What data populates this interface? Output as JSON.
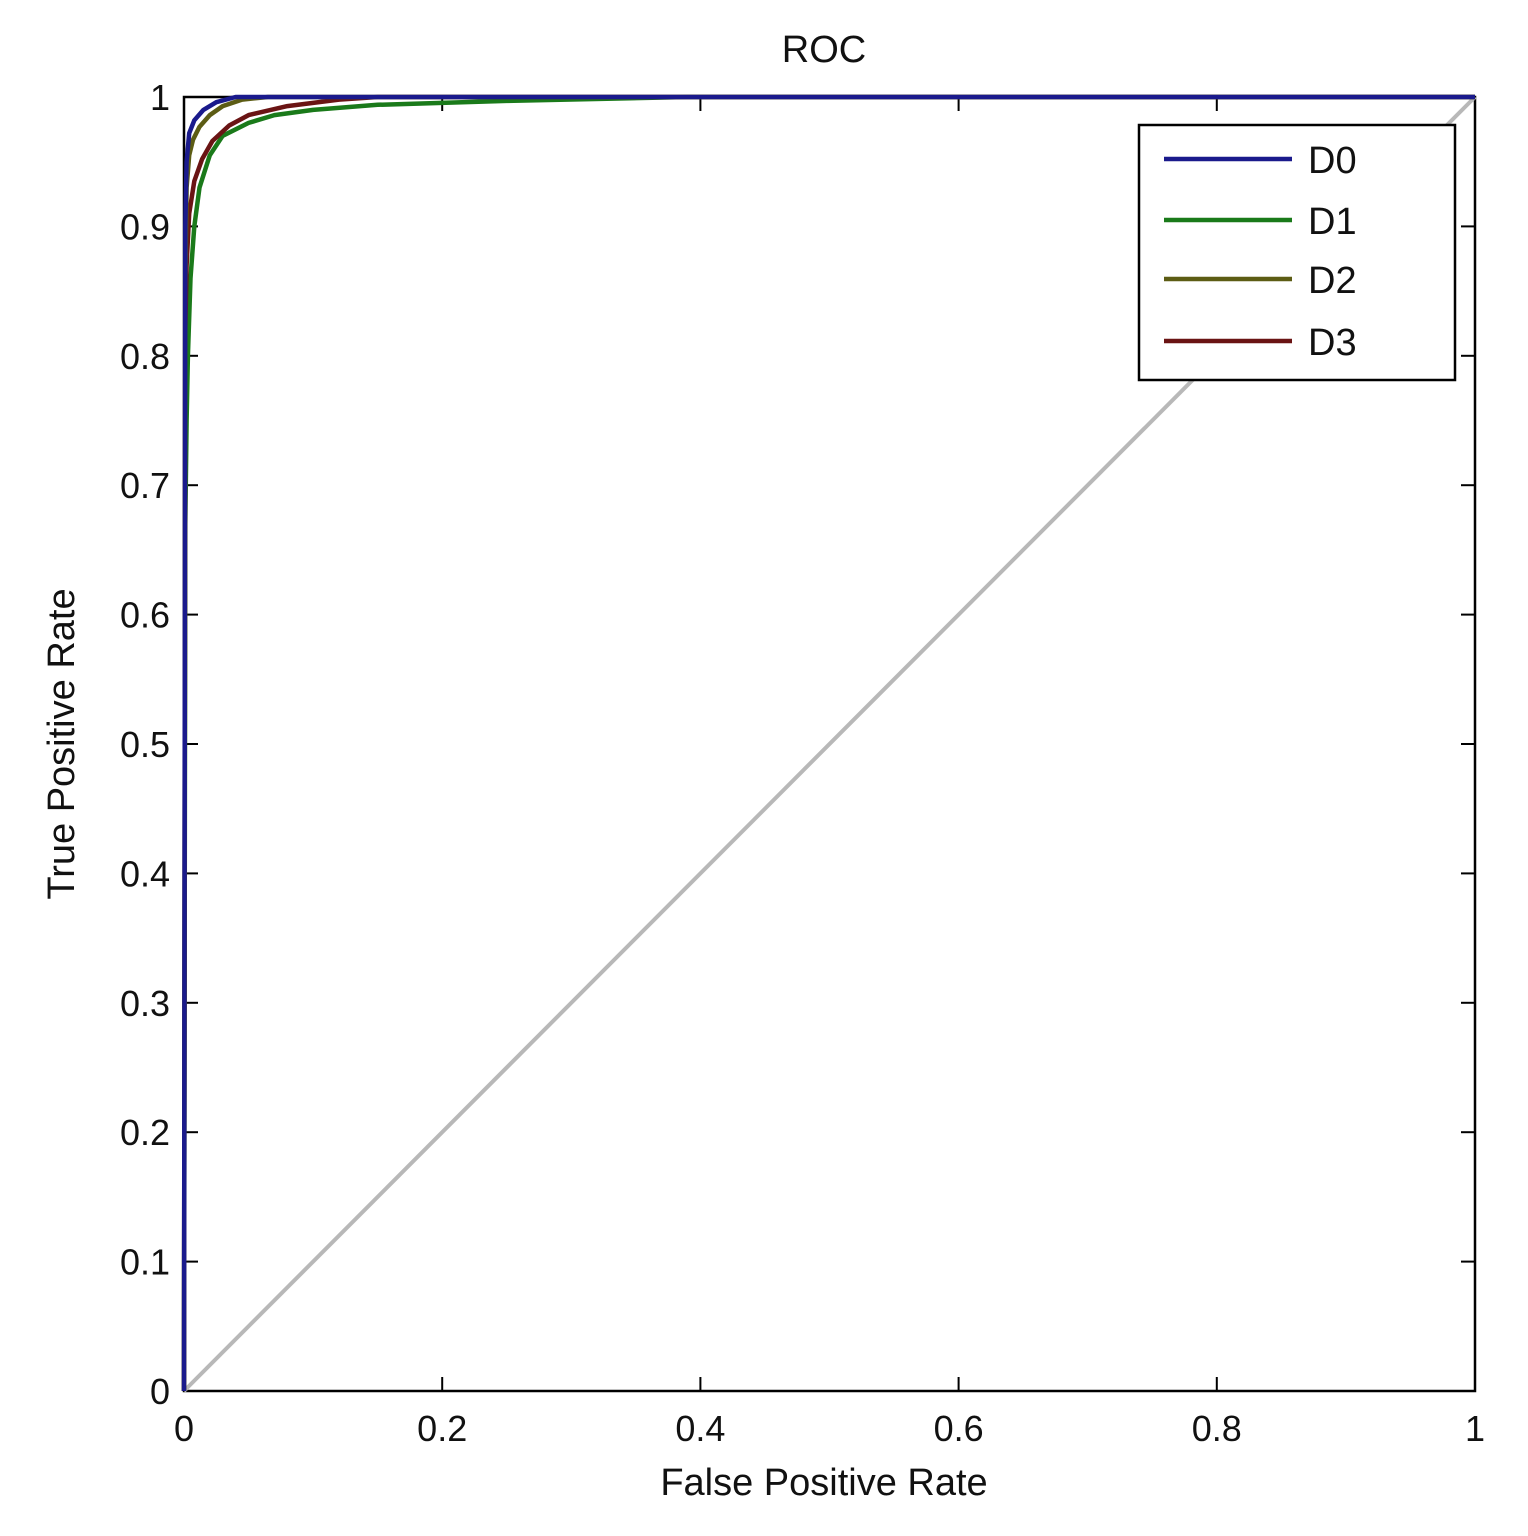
{
  "chart_data": {
    "type": "line",
    "title": "ROC",
    "xlabel": "False Positive Rate",
    "ylabel": "True Positive Rate",
    "xlim": [
      0,
      1
    ],
    "ylim": [
      0,
      1
    ],
    "x_ticks": [
      0,
      0.2,
      0.4,
      0.6,
      0.8,
      1
    ],
    "x_tick_labels": [
      "0",
      "0.2",
      "0.4",
      "0.6",
      "0.8",
      "1"
    ],
    "y_ticks": [
      0,
      0.1,
      0.2,
      0.3,
      0.4,
      0.5,
      0.6,
      0.7,
      0.8,
      0.9,
      1
    ],
    "y_tick_labels": [
      "0",
      "0.1",
      "0.2",
      "0.3",
      "0.4",
      "0.5",
      "0.6",
      "0.7",
      "0.8",
      "0.9",
      "1"
    ],
    "grid": false,
    "legend": "top-right",
    "reference_line": {
      "x": [
        0,
        1
      ],
      "y": [
        0,
        1
      ],
      "color": "#b8b8b8"
    },
    "series": [
      {
        "name": "D0",
        "color": "#1a1a8c",
        "x": [
          0,
          0.001,
          0.002,
          0.004,
          0.008,
          0.015,
          0.025,
          0.04,
          0.1,
          0.3,
          1
        ],
        "y": [
          0,
          0.9,
          0.95,
          0.972,
          0.982,
          0.99,
          0.996,
          1,
          1,
          1,
          1
        ]
      },
      {
        "name": "D1",
        "color": "#1a7a1a",
        "x": [
          0,
          0.001,
          0.002,
          0.003,
          0.005,
          0.008,
          0.012,
          0.02,
          0.03,
          0.05,
          0.07,
          0.1,
          0.15,
          0.25,
          0.39,
          1
        ],
        "y": [
          0,
          0.67,
          0.75,
          0.8,
          0.86,
          0.9,
          0.93,
          0.955,
          0.97,
          0.98,
          0.986,
          0.99,
          0.994,
          0.997,
          1,
          1
        ]
      },
      {
        "name": "D2",
        "color": "#5c5c14",
        "x": [
          0,
          0.001,
          0.002,
          0.004,
          0.007,
          0.012,
          0.02,
          0.03,
          0.045,
          0.065,
          0.1,
          1
        ],
        "y": [
          0,
          0.85,
          0.93,
          0.955,
          0.967,
          0.977,
          0.986,
          0.993,
          0.998,
          1,
          1,
          1
        ]
      },
      {
        "name": "D3",
        "color": "#6a1414",
        "x": [
          0,
          0.001,
          0.002,
          0.004,
          0.008,
          0.014,
          0.022,
          0.035,
          0.05,
          0.08,
          0.12,
          0.15,
          1
        ],
        "y": [
          0,
          0.82,
          0.87,
          0.91,
          0.935,
          0.952,
          0.966,
          0.978,
          0.986,
          0.993,
          0.998,
          1,
          1
        ]
      }
    ]
  }
}
